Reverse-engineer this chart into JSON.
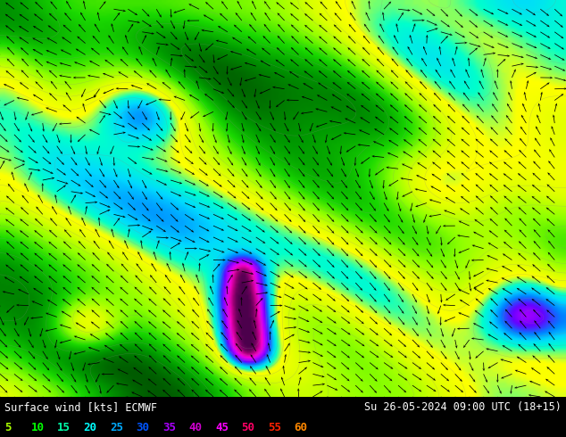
{
  "title_left": "Surface wind [kts] ECMWF",
  "title_right": "Su 26-05-2024 09:00 UTC (18+15)",
  "legend_values": [
    "5",
    "10",
    "15",
    "20",
    "25",
    "30",
    "35",
    "40",
    "45",
    "50",
    "55",
    "60"
  ],
  "legend_colors": [
    "#aaff00",
    "#00ff00",
    "#00ffaa",
    "#00ffff",
    "#00aaff",
    "#0055ff",
    "#aa00ff",
    "#cc00cc",
    "#ff00ff",
    "#ff0066",
    "#ff2200",
    "#ff8800"
  ],
  "bg_color": "#000000",
  "text_color": "#ffffff",
  "fig_width": 6.34,
  "fig_height": 4.9,
  "dpi": 100,
  "wind_arrow_color": "#000000",
  "seed": 7
}
